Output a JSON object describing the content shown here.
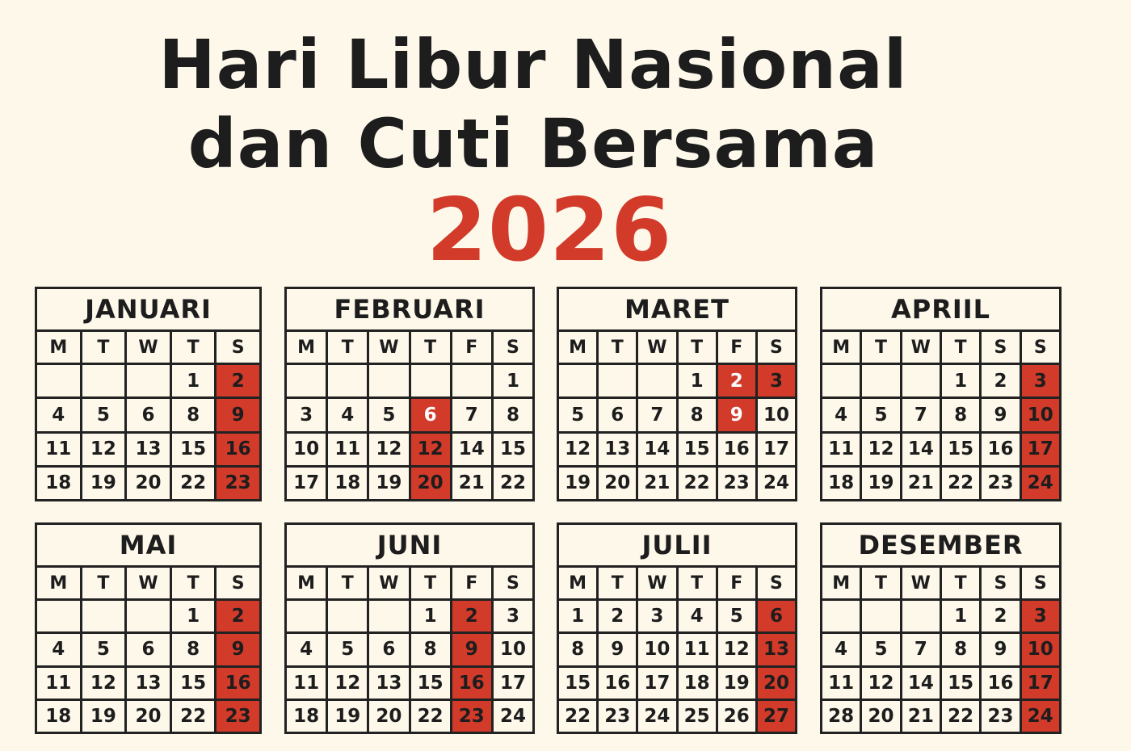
{
  "title": {
    "line1": "Hari Libur Nasional",
    "line2": "dan Cuti Bersama",
    "year": "2026"
  },
  "colors": {
    "background": "#fdf8ea",
    "accent_red": "#d23a2a",
    "text": "#1d1d1d"
  },
  "months": [
    {
      "name": "JANUARI",
      "weekdays": [
        "M",
        "T",
        "W",
        "T",
        "S"
      ],
      "rows": [
        [
          {
            "d": ""
          },
          {
            "d": ""
          },
          {
            "d": ""
          },
          {
            "d": "1"
          },
          {
            "d": "2",
            "red": true
          }
        ],
        [
          {
            "d": "4"
          },
          {
            "d": "5"
          },
          {
            "d": "6"
          },
          {
            "d": "8"
          },
          {
            "d": "9",
            "red": true
          }
        ],
        [
          {
            "d": "11"
          },
          {
            "d": "12"
          },
          {
            "d": "13"
          },
          {
            "d": "15"
          },
          {
            "d": "16",
            "red": true
          }
        ],
        [
          {
            "d": "18"
          },
          {
            "d": "19"
          },
          {
            "d": "20"
          },
          {
            "d": "22"
          },
          {
            "d": "23",
            "red": true
          }
        ]
      ]
    },
    {
      "name": "FEBRUARI",
      "weekdays": [
        "M",
        "T",
        "W",
        "T",
        "F",
        "S"
      ],
      "rows": [
        [
          {
            "d": ""
          },
          {
            "d": ""
          },
          {
            "d": ""
          },
          {
            "d": ""
          },
          {
            "d": ""
          },
          {
            "d": "1"
          }
        ],
        [
          {
            "d": "3"
          },
          {
            "d": "4"
          },
          {
            "d": "5"
          },
          {
            "d": "6",
            "red": true,
            "white": true
          },
          {
            "d": "7"
          },
          {
            "d": "8"
          }
        ],
        [
          {
            "d": "10"
          },
          {
            "d": "11"
          },
          {
            "d": "12"
          },
          {
            "d": "12",
            "red": true
          },
          {
            "d": "14"
          },
          {
            "d": "15"
          }
        ],
        [
          {
            "d": "17"
          },
          {
            "d": "18"
          },
          {
            "d": "19"
          },
          {
            "d": "20",
            "red": true
          },
          {
            "d": "21"
          },
          {
            "d": "22"
          }
        ]
      ]
    },
    {
      "name": "MARET",
      "weekdays": [
        "M",
        "T",
        "W",
        "T",
        "F",
        "S"
      ],
      "rows": [
        [
          {
            "d": ""
          },
          {
            "d": ""
          },
          {
            "d": ""
          },
          {
            "d": "1"
          },
          {
            "d": "2",
            "red": true,
            "white": true
          },
          {
            "d": "3",
            "red": true
          }
        ],
        [
          {
            "d": "5"
          },
          {
            "d": "6"
          },
          {
            "d": "7"
          },
          {
            "d": "8"
          },
          {
            "d": "9",
            "red": true,
            "white": true
          },
          {
            "d": "10"
          }
        ],
        [
          {
            "d": "12"
          },
          {
            "d": "13"
          },
          {
            "d": "14"
          },
          {
            "d": "15"
          },
          {
            "d": "16"
          },
          {
            "d": "17"
          }
        ],
        [
          {
            "d": "19"
          },
          {
            "d": "20"
          },
          {
            "d": "21"
          },
          {
            "d": "22"
          },
          {
            "d": "23"
          },
          {
            "d": "24"
          }
        ]
      ]
    },
    {
      "name": "APRIIL",
      "weekdays": [
        "M",
        "T",
        "W",
        "T",
        "S",
        "S"
      ],
      "rows": [
        [
          {
            "d": ""
          },
          {
            "d": ""
          },
          {
            "d": ""
          },
          {
            "d": "1"
          },
          {
            "d": "2"
          },
          {
            "d": "3",
            "red": true
          }
        ],
        [
          {
            "d": "4"
          },
          {
            "d": "5"
          },
          {
            "d": "7"
          },
          {
            "d": "8"
          },
          {
            "d": "9"
          },
          {
            "d": "10",
            "red": true
          }
        ],
        [
          {
            "d": "11"
          },
          {
            "d": "12"
          },
          {
            "d": "14"
          },
          {
            "d": "15"
          },
          {
            "d": "16"
          },
          {
            "d": "17",
            "red": true
          }
        ],
        [
          {
            "d": "18"
          },
          {
            "d": "19"
          },
          {
            "d": "21"
          },
          {
            "d": "22"
          },
          {
            "d": "23"
          },
          {
            "d": "24",
            "red": true
          }
        ]
      ]
    },
    {
      "name": "MAI",
      "weekdays": [
        "M",
        "T",
        "W",
        "T",
        "S"
      ],
      "rows": [
        [
          {
            "d": ""
          },
          {
            "d": ""
          },
          {
            "d": ""
          },
          {
            "d": "1"
          },
          {
            "d": "2",
            "red": true
          }
        ],
        [
          {
            "d": "4"
          },
          {
            "d": "5"
          },
          {
            "d": "6"
          },
          {
            "d": "8"
          },
          {
            "d": "9",
            "red": true
          }
        ],
        [
          {
            "d": "11"
          },
          {
            "d": "12"
          },
          {
            "d": "13"
          },
          {
            "d": "15"
          },
          {
            "d": "16",
            "red": true
          }
        ],
        [
          {
            "d": "18"
          },
          {
            "d": "19"
          },
          {
            "d": "20"
          },
          {
            "d": "22"
          },
          {
            "d": "23",
            "red": true
          }
        ]
      ]
    },
    {
      "name": "JUNI",
      "weekdays": [
        "M",
        "T",
        "W",
        "T",
        "F",
        "S"
      ],
      "rows": [
        [
          {
            "d": ""
          },
          {
            "d": ""
          },
          {
            "d": ""
          },
          {
            "d": "1"
          },
          {
            "d": "2",
            "red": true
          },
          {
            "d": "3"
          }
        ],
        [
          {
            "d": "4"
          },
          {
            "d": "5"
          },
          {
            "d": "6"
          },
          {
            "d": "8"
          },
          {
            "d": "9",
            "red": true
          },
          {
            "d": "10"
          }
        ],
        [
          {
            "d": "11"
          },
          {
            "d": "12"
          },
          {
            "d": "13"
          },
          {
            "d": "15"
          },
          {
            "d": "16",
            "red": true
          },
          {
            "d": "17"
          }
        ],
        [
          {
            "d": "18"
          },
          {
            "d": "19"
          },
          {
            "d": "20"
          },
          {
            "d": "22"
          },
          {
            "d": "23",
            "red": true
          },
          {
            "d": "24"
          }
        ]
      ]
    },
    {
      "name": "JULII",
      "weekdays": [
        "M",
        "T",
        "W",
        "T",
        "F",
        "S"
      ],
      "rows": [
        [
          {
            "d": "1"
          },
          {
            "d": "2"
          },
          {
            "d": "3"
          },
          {
            "d": "4"
          },
          {
            "d": "5"
          },
          {
            "d": "6",
            "red": true
          }
        ],
        [
          {
            "d": "8"
          },
          {
            "d": "9"
          },
          {
            "d": "10"
          },
          {
            "d": "11"
          },
          {
            "d": "12"
          },
          {
            "d": "13",
            "red": true
          }
        ],
        [
          {
            "d": "15"
          },
          {
            "d": "16"
          },
          {
            "d": "17"
          },
          {
            "d": "18"
          },
          {
            "d": "19"
          },
          {
            "d": "20",
            "red": true
          }
        ],
        [
          {
            "d": "22"
          },
          {
            "d": "23"
          },
          {
            "d": "24"
          },
          {
            "d": "25"
          },
          {
            "d": "26"
          },
          {
            "d": "27",
            "red": true
          }
        ]
      ]
    },
    {
      "name": "DESEMBER",
      "weekdays": [
        "M",
        "T",
        "W",
        "T",
        "S",
        "S"
      ],
      "rows": [
        [
          {
            "d": ""
          },
          {
            "d": ""
          },
          {
            "d": ""
          },
          {
            "d": "1"
          },
          {
            "d": "2"
          },
          {
            "d": "3",
            "red": true
          }
        ],
        [
          {
            "d": "4"
          },
          {
            "d": "5"
          },
          {
            "d": "7"
          },
          {
            "d": "8"
          },
          {
            "d": "9"
          },
          {
            "d": "10",
            "red": true
          }
        ],
        [
          {
            "d": "11"
          },
          {
            "d": "12"
          },
          {
            "d": "14"
          },
          {
            "d": "15"
          },
          {
            "d": "16"
          },
          {
            "d": "17",
            "red": true
          }
        ],
        [
          {
            "d": "28"
          },
          {
            "d": "20"
          },
          {
            "d": "21"
          },
          {
            "d": "22"
          },
          {
            "d": "23"
          },
          {
            "d": "24",
            "red": true
          }
        ]
      ]
    }
  ]
}
